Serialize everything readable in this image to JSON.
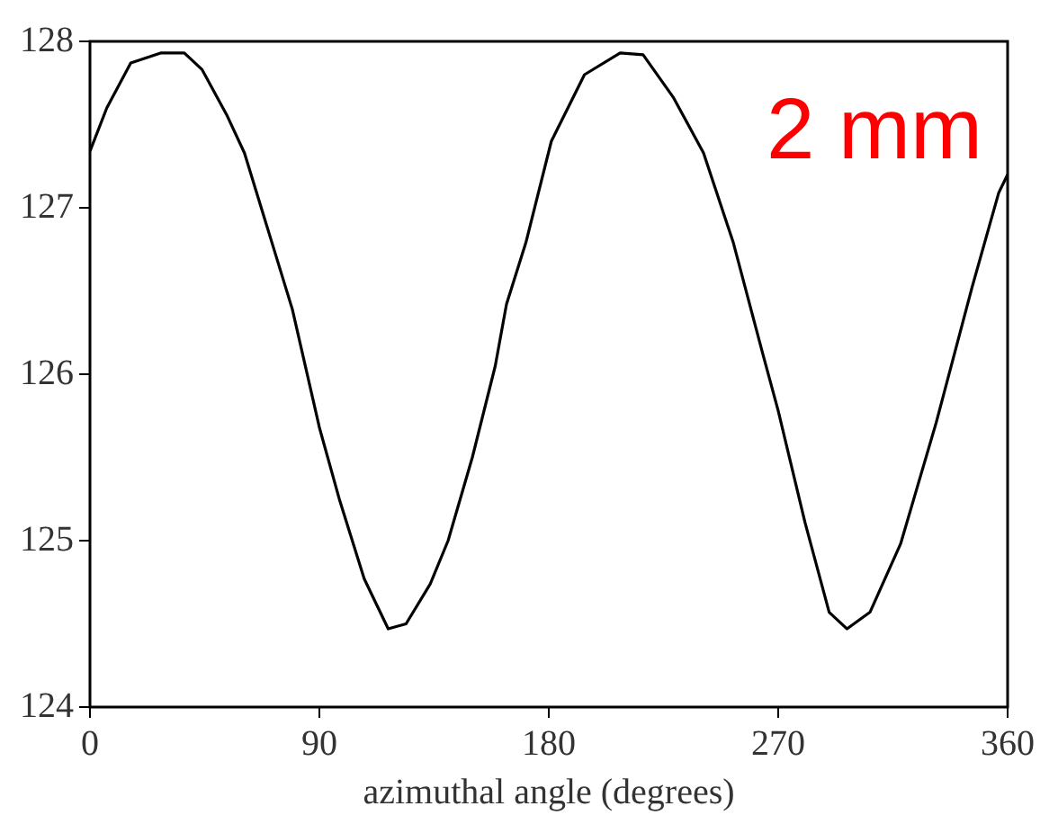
{
  "chart_data": {
    "type": "line",
    "xlabel": "azimuthal angle (degrees)",
    "annotations": [
      "2 mm"
    ],
    "xlim": [
      0,
      360
    ],
    "xticks": [
      0,
      90,
      180,
      270,
      360
    ],
    "ylim": [
      124,
      128
    ],
    "yticks": [
      124,
      125,
      126,
      127,
      128
    ],
    "grid": false,
    "legend": false,
    "marker": "none",
    "line_style": "solid",
    "series": [
      {
        "color": "#000000",
        "x": [
          0,
          6.6,
          16,
          27.7,
          37,
          44,
          53.6,
          60.6,
          70,
          79.4,
          90,
          98,
          107.6,
          117,
          124,
          133.5,
          140.5,
          150,
          159,
          163.4,
          171,
          181,
          194,
          208,
          217,
          229,
          240.7,
          252.4,
          264,
          270,
          280.5,
          290,
          297,
          306,
          318,
          332,
          346,
          356.5,
          360
        ],
        "values": [
          127.34,
          127.6,
          127.87,
          127.93,
          127.93,
          127.83,
          127.56,
          127.33,
          126.86,
          126.39,
          125.68,
          125.24,
          124.77,
          124.47,
          124.5,
          124.74,
          125.0,
          125.5,
          126.05,
          126.42,
          126.79,
          127.4,
          127.8,
          127.93,
          127.92,
          127.66,
          127.33,
          126.79,
          126.12,
          125.78,
          125.11,
          124.57,
          124.47,
          124.57,
          124.98,
          125.71,
          126.52,
          127.09,
          127.2
        ]
      }
    ]
  }
}
